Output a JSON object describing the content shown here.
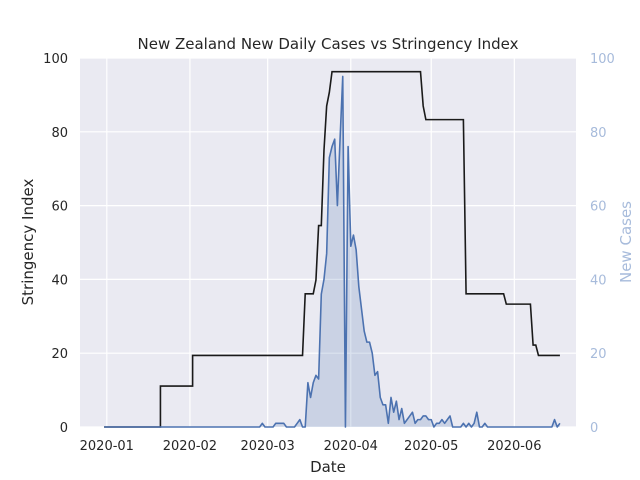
{
  "chart_data": {
    "type": "line",
    "title": "New Zealand New Daily Cases vs Stringency Index",
    "xlabel": "Date",
    "ylabel_left": "Stringency Index",
    "ylabel_right": "New Cases",
    "x_range": [
      "2019-12-22",
      "2020-06-24"
    ],
    "ylim_left": [
      0,
      100
    ],
    "ylim_right": [
      0,
      100
    ],
    "x_ticks": [
      "2020-01",
      "2020-02",
      "2020-03",
      "2020-04",
      "2020-05",
      "2020-06"
    ],
    "x_tick_dates": [
      "2020-01-01",
      "2020-02-01",
      "2020-03-01",
      "2020-04-01",
      "2020-05-01",
      "2020-06-01"
    ],
    "y_ticks_left": [
      "0",
      "20",
      "40",
      "60",
      "80",
      "100"
    ],
    "y_ticks_right": [
      "0",
      "20",
      "40",
      "60",
      "80",
      "100"
    ],
    "grid": true,
    "colors": {
      "background": "#eaeaf2",
      "grid": "#ffffff",
      "stringency": "#1a1a1a",
      "cases": "#4c72b0",
      "cases_fill": "#4c72b0",
      "right_axis": "#a7bbdb"
    },
    "series": [
      {
        "axis": "left",
        "style": "step-line",
        "points": [
          [
            "2019-12-31",
            0
          ],
          [
            "2020-01-21",
            0
          ],
          [
            "2020-01-21",
            11.1
          ],
          [
            "2020-02-02",
            11.1
          ],
          [
            "2020-02-02",
            19.4
          ],
          [
            "2020-03-14",
            19.4
          ],
          [
            "2020-03-15",
            36.1
          ],
          [
            "2020-03-18",
            36.1
          ],
          [
            "2020-03-19",
            39.8
          ],
          [
            "2020-03-20",
            54.6
          ],
          [
            "2020-03-21",
            54.6
          ],
          [
            "2020-03-22",
            75
          ],
          [
            "2020-03-23",
            87
          ],
          [
            "2020-03-24",
            90.7
          ],
          [
            "2020-03-25",
            96.3
          ],
          [
            "2020-04-27",
            96.3
          ],
          [
            "2020-04-28",
            87
          ],
          [
            "2020-04-29",
            83.3
          ],
          [
            "2020-05-13",
            83.3
          ],
          [
            "2020-05-14",
            36.1
          ],
          [
            "2020-05-28",
            36.1
          ],
          [
            "2020-05-29",
            33.3
          ],
          [
            "2020-06-07",
            33.3
          ],
          [
            "2020-06-08",
            22.2
          ],
          [
            "2020-06-09",
            22.2
          ],
          [
            "2020-06-10",
            19.4
          ],
          [
            "2020-06-18",
            19.4
          ]
        ]
      },
      {
        "name": "New Cases",
        "axis": "right",
        "style": "area",
        "points": [
          [
            "2019-12-31",
            0
          ],
          [
            "2020-02-27",
            0
          ],
          [
            "2020-02-28",
            1
          ],
          [
            "2020-02-29",
            0
          ],
          [
            "2020-03-02",
            0
          ],
          [
            "2020-03-03",
            0
          ],
          [
            "2020-03-04",
            1
          ],
          [
            "2020-03-05",
            1
          ],
          [
            "2020-03-06",
            1
          ],
          [
            "2020-03-07",
            1
          ],
          [
            "2020-03-08",
            0
          ],
          [
            "2020-03-10",
            0
          ],
          [
            "2020-03-11",
            0
          ],
          [
            "2020-03-12",
            1
          ],
          [
            "2020-03-13",
            2
          ],
          [
            "2020-03-14",
            0
          ],
          [
            "2020-03-15",
            0
          ],
          [
            "2020-03-16",
            12
          ],
          [
            "2020-03-17",
            8
          ],
          [
            "2020-03-18",
            12
          ],
          [
            "2020-03-19",
            14
          ],
          [
            "2020-03-20",
            13
          ],
          [
            "2020-03-21",
            36
          ],
          [
            "2020-03-22",
            40
          ],
          [
            "2020-03-23",
            47
          ],
          [
            "2020-03-24",
            73
          ],
          [
            "2020-03-25",
            76
          ],
          [
            "2020-03-26",
            78
          ],
          [
            "2020-03-27",
            60
          ],
          [
            "2020-03-28",
            78
          ],
          [
            "2020-03-29",
            95
          ],
          [
            "2020-03-30",
            0
          ],
          [
            "2020-03-31",
            76
          ],
          [
            "2020-04-01",
            49
          ],
          [
            "2020-04-02",
            52
          ],
          [
            "2020-04-03",
            48
          ],
          [
            "2020-04-04",
            38
          ],
          [
            "2020-04-05",
            32
          ],
          [
            "2020-04-06",
            26
          ],
          [
            "2020-04-07",
            23
          ],
          [
            "2020-04-08",
            23
          ],
          [
            "2020-04-09",
            20
          ],
          [
            "2020-04-10",
            14
          ],
          [
            "2020-04-11",
            15
          ],
          [
            "2020-04-12",
            8
          ],
          [
            "2020-04-13",
            6
          ],
          [
            "2020-04-14",
            6
          ],
          [
            "2020-04-15",
            1
          ],
          [
            "2020-04-16",
            8
          ],
          [
            "2020-04-17",
            4
          ],
          [
            "2020-04-18",
            7
          ],
          [
            "2020-04-19",
            2
          ],
          [
            "2020-04-20",
            5
          ],
          [
            "2020-04-21",
            1
          ],
          [
            "2020-04-22",
            2
          ],
          [
            "2020-04-23",
            3
          ],
          [
            "2020-04-24",
            4
          ],
          [
            "2020-04-25",
            1
          ],
          [
            "2020-04-26",
            2
          ],
          [
            "2020-04-27",
            2
          ],
          [
            "2020-04-28",
            3
          ],
          [
            "2020-04-29",
            3
          ],
          [
            "2020-04-30",
            2
          ],
          [
            "2020-05-01",
            2
          ],
          [
            "2020-05-02",
            0
          ],
          [
            "2020-05-03",
            1
          ],
          [
            "2020-05-04",
            1
          ],
          [
            "2020-05-05",
            2
          ],
          [
            "2020-05-06",
            1
          ],
          [
            "2020-05-07",
            2
          ],
          [
            "2020-05-08",
            3
          ],
          [
            "2020-05-09",
            0
          ],
          [
            "2020-05-10",
            0
          ],
          [
            "2020-05-11",
            0
          ],
          [
            "2020-05-12",
            0
          ],
          [
            "2020-05-13",
            1
          ],
          [
            "2020-05-14",
            0
          ],
          [
            "2020-05-15",
            1
          ],
          [
            "2020-05-16",
            0
          ],
          [
            "2020-05-17",
            1
          ],
          [
            "2020-05-18",
            4
          ],
          [
            "2020-05-19",
            0
          ],
          [
            "2020-05-20",
            0
          ],
          [
            "2020-05-21",
            1
          ],
          [
            "2020-05-22",
            0
          ],
          [
            "2020-06-15",
            0
          ],
          [
            "2020-06-16",
            2
          ],
          [
            "2020-06-17",
            0
          ],
          [
            "2020-06-18",
            1
          ]
        ]
      }
    ]
  }
}
